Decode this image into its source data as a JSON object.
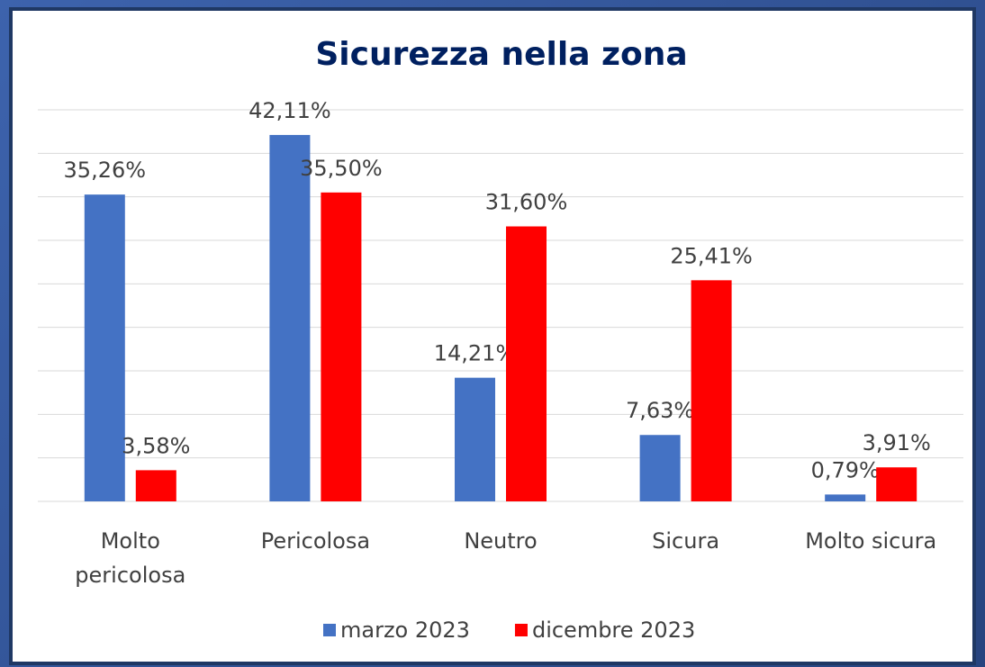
{
  "chart_data": {
    "type": "bar",
    "title": "Sicurezza nella zona",
    "categories": [
      "Molto pericolosa",
      "Pericolosa",
      "Neutro",
      "Sicura",
      "Molto sicura"
    ],
    "series": [
      {
        "name": "marzo 2023",
        "color": "#4472c4",
        "values": [
          35.26,
          42.11,
          14.21,
          7.63,
          0.79
        ],
        "value_labels": [
          "35,26%",
          "42,11%",
          "14,21%",
          "7,63%",
          "0,79%"
        ]
      },
      {
        "name": "dicembre 2023",
        "color": "#ff0000",
        "values": [
          3.58,
          35.5,
          31.6,
          25.41,
          3.91
        ],
        "value_labels": [
          "3,58%",
          "35,50%",
          "31,60%",
          "25,41%",
          "3,91%"
        ]
      }
    ],
    "ylim": [
      0,
      45
    ],
    "yticks": [
      0,
      5,
      10,
      15,
      20,
      25,
      30,
      35,
      40,
      45
    ],
    "grid": true,
    "legend": "bottom"
  }
}
